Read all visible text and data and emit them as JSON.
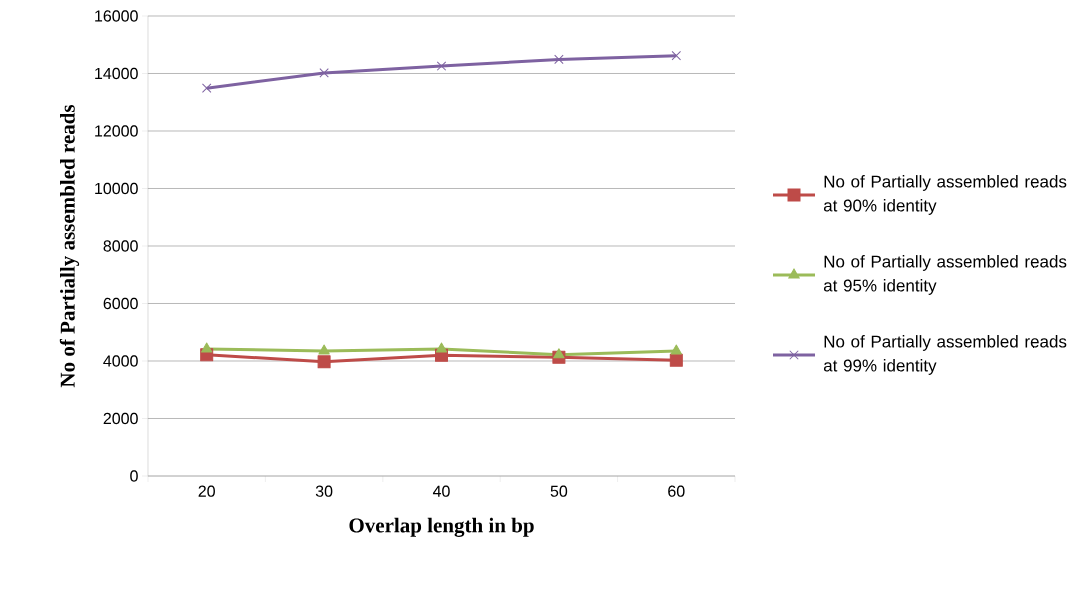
{
  "chart_data": {
    "type": "line",
    "xlabel": "Overlap length in bp",
    "ylabel": "No of Partially assembled reads",
    "categories": [
      "20",
      "30",
      "40",
      "50",
      "60"
    ],
    "series": [
      {
        "name": "No of Partially assembled reads at 90% identity",
        "color": "#be4b48",
        "marker": "square",
        "values": [
          4220,
          3970,
          4200,
          4130,
          4030
        ]
      },
      {
        "name": "No of Partially assembled reads at 95% identity",
        "color": "#9bbb59",
        "marker": "triangle",
        "values": [
          4420,
          4350,
          4420,
          4220,
          4350
        ]
      },
      {
        "name": "No of Partially assembled reads at 99% identity",
        "color": "#7e62a1",
        "marker": "cross",
        "values": [
          13490,
          14020,
          14260,
          14490,
          14620
        ]
      }
    ],
    "ylim": [
      0,
      16000
    ],
    "yticks": [
      0,
      2000,
      4000,
      6000,
      8000,
      10000,
      12000,
      14000,
      16000
    ],
    "grid": "y",
    "legend": "right"
  }
}
